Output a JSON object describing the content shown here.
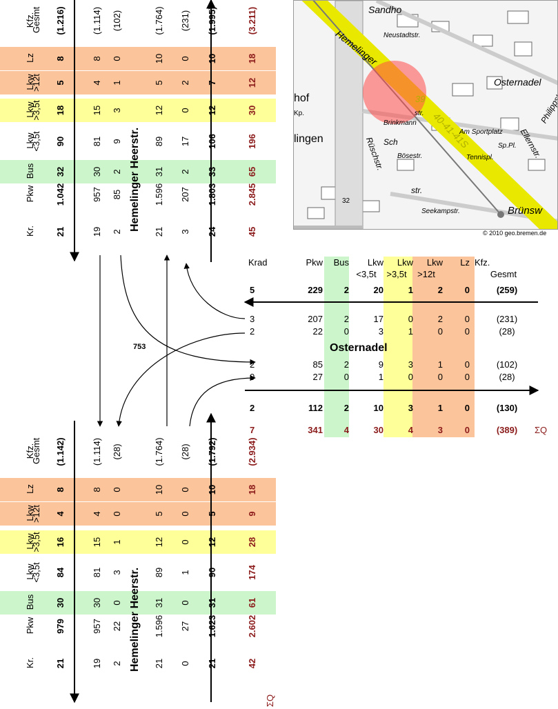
{
  "map": {
    "copyright": "© 2010 geo.bremen.de",
    "labels": [
      "Sandho",
      "Neustadtstr.",
      "Hemelinger",
      "Osternadel",
      "Philippst",
      "hof",
      "Kp.",
      "lingen",
      "Brinkmann",
      "str.",
      "Sch",
      "Bösestr.",
      "Am Sportplatz",
      "Sp.Pl.",
      "Tennispl.",
      "Ellernstr.",
      "Rüschstr.",
      "str.",
      "Seekampstr.",
      "Brünsw",
      "39",
      "40-41-41S",
      "32"
    ]
  },
  "top_block": {
    "headers": [
      {
        "line1": "Kr.",
        "line2": ""
      },
      {
        "line1": "Pkw",
        "line2": ""
      },
      {
        "line1": "Bus",
        "line2": ""
      },
      {
        "line1": "Lkw",
        "line2": "<3,5t"
      },
      {
        "line1": "Lkw",
        "line2": ">3,5t"
      },
      {
        "line1": "Lkw",
        "line2": ">12t"
      },
      {
        "line1": "Lz",
        "line2": ""
      },
      {
        "line1": "Kfz.",
        "line2": "Gesmt"
      }
    ],
    "rows": [
      {
        "values": [
          "21",
          "1.042",
          "32",
          "90",
          "18",
          "5",
          "8",
          "(1.216)"
        ],
        "bold": true,
        "red": false
      },
      {
        "values": [
          "19",
          "957",
          "30",
          "81",
          "15",
          "4",
          "8",
          "(1.114)"
        ],
        "bold": false,
        "red": false
      },
      {
        "values": [
          "2",
          "85",
          "2",
          "9",
          "3",
          "1",
          "0",
          "(102)"
        ],
        "bold": false,
        "red": false
      },
      {
        "values": [
          "21",
          "1.596",
          "31",
          "89",
          "12",
          "5",
          "10",
          "(1.764)"
        ],
        "bold": false,
        "red": false
      },
      {
        "values": [
          "3",
          "207",
          "2",
          "17",
          "0",
          "2",
          "0",
          "(231)"
        ],
        "bold": false,
        "red": false
      },
      {
        "values": [
          "24",
          "1.803",
          "33",
          "106",
          "12",
          "7",
          "10",
          "(1.995)"
        ],
        "bold": true,
        "red": false
      },
      {
        "values": [
          "45",
          "2.845",
          "65",
          "196",
          "30",
          "12",
          "18",
          "(3.211)"
        ],
        "bold": true,
        "red": true
      }
    ],
    "street": "Hemelinger Heerstr."
  },
  "bottom_block": {
    "headers": [
      {
        "line1": "Kr.",
        "line2": ""
      },
      {
        "line1": "Pkw",
        "line2": ""
      },
      {
        "line1": "Bus",
        "line2": ""
      },
      {
        "line1": "Lkw",
        "line2": "<3,5t"
      },
      {
        "line1": "Lkw",
        "line2": ">3,5t"
      },
      {
        "line1": "Lkw",
        "line2": ">12t"
      },
      {
        "line1": "Lz",
        "line2": ""
      },
      {
        "line1": "Kfz.",
        "line2": "Gesmt"
      }
    ],
    "rows": [
      {
        "values": [
          "21",
          "979",
          "30",
          "84",
          "16",
          "4",
          "8",
          "(1.142)"
        ],
        "bold": true,
        "red": false
      },
      {
        "values": [
          "19",
          "957",
          "30",
          "81",
          "15",
          "4",
          "8",
          "(1.114)"
        ],
        "bold": false,
        "red": false
      },
      {
        "values": [
          "2",
          "22",
          "0",
          "3",
          "1",
          "0",
          "0",
          "(28)"
        ],
        "bold": false,
        "red": false
      },
      {
        "values": [
          "21",
          "1.596",
          "31",
          "89",
          "12",
          "5",
          "10",
          "(1.764)"
        ],
        "bold": false,
        "red": false
      },
      {
        "values": [
          "0",
          "27",
          "0",
          "1",
          "0",
          "0",
          "0",
          "(28)"
        ],
        "bold": false,
        "red": false
      },
      {
        "values": [
          "21",
          "1.623",
          "31",
          "90",
          "12",
          "5",
          "10",
          "(1.792)"
        ],
        "bold": true,
        "red": false
      },
      {
        "values": [
          "42",
          "2.602",
          "61",
          "174",
          "28",
          "9",
          "18",
          "(2.934)"
        ],
        "bold": true,
        "red": true
      }
    ],
    "street": "Hemelinger Heerstr.",
    "sum_label": "ΣQ"
  },
  "right_block": {
    "headers": [
      {
        "line1": "Krad",
        "line2": ""
      },
      {
        "line1": "Pkw",
        "line2": ""
      },
      {
        "line1": "Bus",
        "line2": ""
      },
      {
        "line1": "Lkw",
        "line2": "<3,5t"
      },
      {
        "line1": "Lkw",
        "line2": ">3,5t"
      },
      {
        "line1": "Lkw",
        "line2": ">12t"
      },
      {
        "line1": "Lz",
        "line2": ""
      },
      {
        "line1": "Kfz.",
        "line2": "Gesmt"
      }
    ],
    "rows": [
      {
        "values": [
          "5",
          "229",
          "2",
          "20",
          "1",
          "2",
          "0",
          "(259)"
        ],
        "bold": true,
        "red": false
      },
      {
        "values": [
          "3",
          "207",
          "2",
          "17",
          "0",
          "2",
          "0",
          "(231)"
        ],
        "bold": false,
        "red": false
      },
      {
        "values": [
          "2",
          "22",
          "0",
          "3",
          "1",
          "0",
          "0",
          "(28)"
        ],
        "bold": false,
        "red": false
      },
      {
        "values": [
          "2",
          "85",
          "2",
          "9",
          "3",
          "1",
          "0",
          "(102)"
        ],
        "bold": false,
        "red": false
      },
      {
        "values": [
          "0",
          "27",
          "0",
          "1",
          "0",
          "0",
          "0",
          "(28)"
        ],
        "bold": false,
        "red": false
      },
      {
        "values": [
          "2",
          "112",
          "2",
          "10",
          "3",
          "1",
          "0",
          "(130)"
        ],
        "bold": true,
        "red": false
      },
      {
        "values": [
          "7",
          "341",
          "4",
          "30",
          "4",
          "3",
          "0",
          "(389)"
        ],
        "bold": true,
        "red": true
      }
    ],
    "street": "Osternadel",
    "sum_label": "ΣQ"
  },
  "center_value": "753"
}
